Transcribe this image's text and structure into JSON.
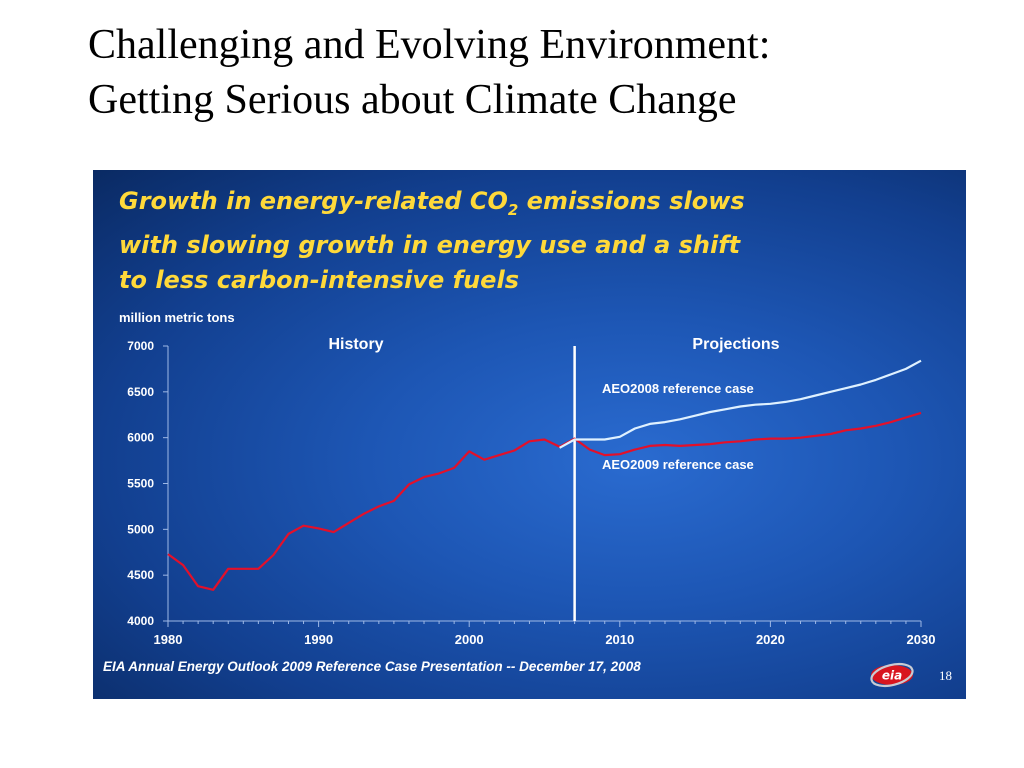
{
  "slide": {
    "title_line1": "Challenging and Evolving Environment:",
    "title_line2": "Getting Serious about Climate Change",
    "headline_line1_pre": "Growth in energy-related CO",
    "headline_line1_sub": "2",
    "headline_line1_post": " emissions slows",
    "headline_line2": "with slowing growth in energy use and a shift",
    "headline_line3": "to less carbon-intensive fuels",
    "footer": "EIA Annual Energy Outlook 2009 Reference Case Presentation -- December 17, 2008",
    "logo_text": "eia",
    "page_number": "18"
  },
  "colors": {
    "headline": "#ffd93a",
    "aeo2008_line": "#dff1ff",
    "aeo2009_line": "#e3102a",
    "divider": "#ffffff",
    "axis_text": "#ffffff"
  },
  "chart_data": {
    "type": "line",
    "ylabel": "million metric tons",
    "ylim": [
      4000,
      7000
    ],
    "yticks": [
      7000,
      6500,
      6000,
      5500,
      5000,
      4500,
      4000
    ],
    "xlim": [
      1980,
      2030
    ],
    "xticks": [
      1980,
      1990,
      2000,
      2010,
      2020,
      2030
    ],
    "divider_year": 2007,
    "region_labels": [
      "History",
      "Projections"
    ],
    "series": [
      {
        "name": "AEO2009 reference case",
        "x": [
          1980,
          1981,
          1982,
          1983,
          1984,
          1985,
          1986,
          1987,
          1988,
          1989,
          1990,
          1991,
          1992,
          1993,
          1994,
          1995,
          1996,
          1997,
          1998,
          1999,
          2000,
          2001,
          2002,
          2003,
          2004,
          2005,
          2006,
          2007,
          2008,
          2009,
          2010,
          2011,
          2012,
          2013,
          2014,
          2015,
          2016,
          2017,
          2018,
          2019,
          2020,
          2021,
          2022,
          2023,
          2024,
          2025,
          2026,
          2027,
          2028,
          2029,
          2030
        ],
        "values": [
          4730,
          4610,
          4380,
          4340,
          4570,
          4570,
          4570,
          4720,
          4950,
          5040,
          5010,
          4970,
          5070,
          5170,
          5250,
          5310,
          5490,
          5570,
          5610,
          5670,
          5850,
          5760,
          5810,
          5860,
          5960,
          5980,
          5900,
          5990,
          5870,
          5810,
          5820,
          5870,
          5910,
          5920,
          5910,
          5920,
          5930,
          5950,
          5960,
          5980,
          5990,
          5990,
          6000,
          6020,
          6040,
          6080,
          6100,
          6130,
          6170,
          6220,
          6270
        ]
      },
      {
        "name": "AEO2008 reference case",
        "x": [
          2006,
          2007,
          2008,
          2009,
          2010,
          2011,
          2012,
          2013,
          2014,
          2015,
          2016,
          2017,
          2018,
          2019,
          2020,
          2021,
          2022,
          2023,
          2024,
          2025,
          2026,
          2027,
          2028,
          2029,
          2030
        ],
        "values": [
          5890,
          5980,
          5980,
          5980,
          6010,
          6100,
          6150,
          6170,
          6200,
          6240,
          6280,
          6310,
          6340,
          6360,
          6370,
          6390,
          6420,
          6460,
          6500,
          6540,
          6580,
          6630,
          6690,
          6750,
          6840
        ]
      }
    ]
  }
}
